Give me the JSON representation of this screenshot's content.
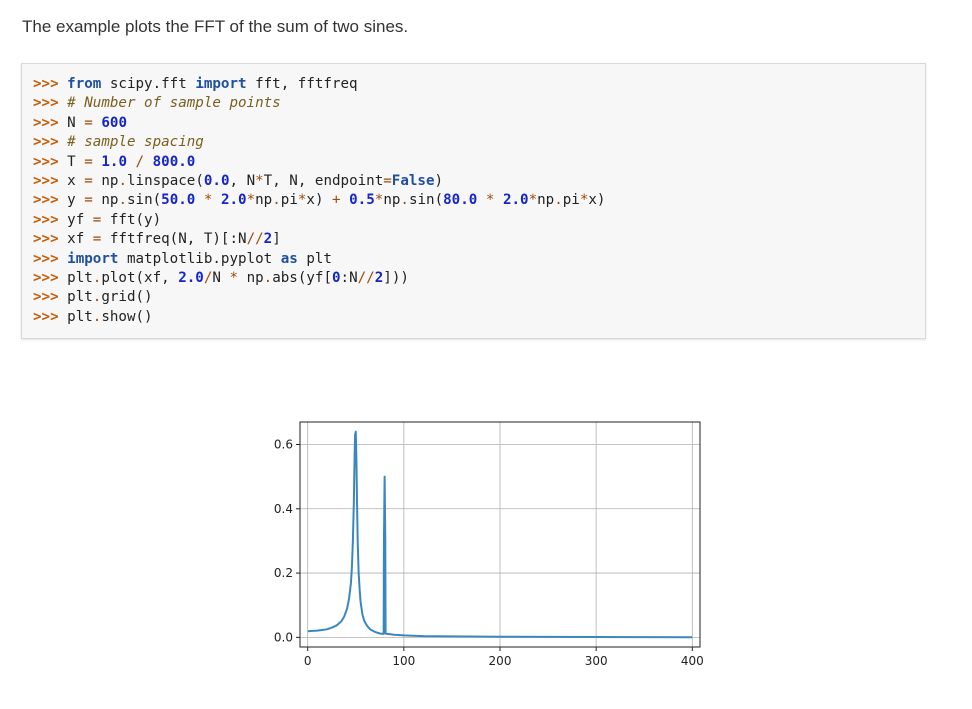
{
  "intro_text": "The example plots the FFT of the sum of two sines.",
  "code": {
    "prompt": ">>> ",
    "lines": [
      [
        [
          "k",
          "from"
        ],
        [
          "t",
          " scipy.fft "
        ],
        [
          "k",
          "import"
        ],
        [
          "t",
          " fft, fftfreq"
        ]
      ],
      [
        [
          "c",
          "# Number of sample points"
        ]
      ],
      [
        [
          "t",
          "N "
        ],
        [
          "o",
          "="
        ],
        [
          "t",
          " "
        ],
        [
          "n",
          "600"
        ]
      ],
      [
        [
          "c",
          "# sample spacing"
        ]
      ],
      [
        [
          "t",
          "T "
        ],
        [
          "o",
          "="
        ],
        [
          "t",
          " "
        ],
        [
          "n",
          "1.0"
        ],
        [
          "t",
          " "
        ],
        [
          "o",
          "/"
        ],
        [
          "t",
          " "
        ],
        [
          "n",
          "800.0"
        ]
      ],
      [
        [
          "t",
          "x "
        ],
        [
          "o",
          "="
        ],
        [
          "t",
          " np"
        ],
        [
          "o",
          "."
        ],
        [
          "t",
          "linspace("
        ],
        [
          "n",
          "0.0"
        ],
        [
          "t",
          ", N"
        ],
        [
          "o",
          "*"
        ],
        [
          "t",
          "T, N, endpoint"
        ],
        [
          "o",
          "="
        ],
        [
          "kc",
          "False"
        ],
        [
          "t",
          ")"
        ]
      ],
      [
        [
          "t",
          "y "
        ],
        [
          "o",
          "="
        ],
        [
          "t",
          " np"
        ],
        [
          "o",
          "."
        ],
        [
          "t",
          "sin("
        ],
        [
          "n",
          "50.0"
        ],
        [
          "t",
          " "
        ],
        [
          "o",
          "*"
        ],
        [
          "t",
          " "
        ],
        [
          "n",
          "2.0"
        ],
        [
          "o",
          "*"
        ],
        [
          "t",
          "np"
        ],
        [
          "o",
          "."
        ],
        [
          "t",
          "pi"
        ],
        [
          "o",
          "*"
        ],
        [
          "t",
          "x) "
        ],
        [
          "o",
          "+"
        ],
        [
          "t",
          " "
        ],
        [
          "n",
          "0.5"
        ],
        [
          "o",
          "*"
        ],
        [
          "t",
          "np"
        ],
        [
          "o",
          "."
        ],
        [
          "t",
          "sin("
        ],
        [
          "n",
          "80.0"
        ],
        [
          "t",
          " "
        ],
        [
          "o",
          "*"
        ],
        [
          "t",
          " "
        ],
        [
          "n",
          "2.0"
        ],
        [
          "o",
          "*"
        ],
        [
          "t",
          "np"
        ],
        [
          "o",
          "."
        ],
        [
          "t",
          "pi"
        ],
        [
          "o",
          "*"
        ],
        [
          "t",
          "x)"
        ]
      ],
      [
        [
          "t",
          "yf "
        ],
        [
          "o",
          "="
        ],
        [
          "t",
          " fft(y)"
        ]
      ],
      [
        [
          "t",
          "xf "
        ],
        [
          "o",
          "="
        ],
        [
          "t",
          " fftfreq(N, T)[:N"
        ],
        [
          "o",
          "//"
        ],
        [
          "n",
          "2"
        ],
        [
          "t",
          "]"
        ]
      ],
      [
        [
          "k",
          "import"
        ],
        [
          "t",
          " matplotlib.pyplot "
        ],
        [
          "k",
          "as"
        ],
        [
          "t",
          " plt"
        ]
      ],
      [
        [
          "t",
          "plt"
        ],
        [
          "o",
          "."
        ],
        [
          "t",
          "plot(xf, "
        ],
        [
          "n",
          "2.0"
        ],
        [
          "o",
          "/"
        ],
        [
          "t",
          "N "
        ],
        [
          "o",
          "*"
        ],
        [
          "t",
          " np"
        ],
        [
          "o",
          "."
        ],
        [
          "t",
          "abs(yf["
        ],
        [
          "n",
          "0"
        ],
        [
          "t",
          ":N"
        ],
        [
          "o",
          "//"
        ],
        [
          "n",
          "2"
        ],
        [
          "t",
          "]))"
        ]
      ],
      [
        [
          "t",
          "plt"
        ],
        [
          "o",
          "."
        ],
        [
          "t",
          "grid()"
        ]
      ],
      [
        [
          "t",
          "plt"
        ],
        [
          "o",
          "."
        ],
        [
          "t",
          "show()"
        ]
      ]
    ]
  },
  "colors": {
    "line": "#3a87c0",
    "grid": "#b0b0b0",
    "axes": "#222222"
  },
  "chart_data": {
    "type": "line",
    "title": "",
    "xlabel": "",
    "ylabel": "",
    "xlim": [
      -8,
      408
    ],
    "ylim": [
      -0.03,
      0.67
    ],
    "xticks": [
      0,
      100,
      200,
      300,
      400
    ],
    "yticks": [
      0.0,
      0.2,
      0.4,
      0.6
    ],
    "xtick_labels": [
      "0",
      "100",
      "200",
      "300",
      "400"
    ],
    "ytick_labels": [
      "0.0",
      "0.2",
      "0.4",
      "0.6"
    ],
    "grid": true,
    "series": [
      {
        "x": [
          0,
          5,
          10,
          15,
          20,
          25,
          30,
          35,
          38,
          41,
          43,
          45,
          46,
          47,
          48,
          48.7,
          49.3,
          50,
          50.7,
          51.3,
          52,
          53,
          54,
          55,
          57,
          59,
          62,
          65,
          70,
          75,
          78,
          79,
          79.3,
          80,
          80.7,
          81,
          82,
          85,
          90,
          100,
          120,
          150,
          200,
          250,
          300,
          350,
          400
        ],
        "y": [
          0.019,
          0.02,
          0.021,
          0.023,
          0.025,
          0.03,
          0.037,
          0.05,
          0.065,
          0.09,
          0.12,
          0.17,
          0.22,
          0.3,
          0.42,
          0.55,
          0.63,
          0.64,
          0.55,
          0.42,
          0.3,
          0.2,
          0.15,
          0.11,
          0.07,
          0.05,
          0.035,
          0.025,
          0.017,
          0.012,
          0.011,
          0.011,
          0.3,
          0.5,
          0.3,
          0.012,
          0.011,
          0.01,
          0.008,
          0.006,
          0.004,
          0.003,
          0.002,
          0.0015,
          0.001,
          0.0008,
          0.0005
        ]
      }
    ]
  }
}
